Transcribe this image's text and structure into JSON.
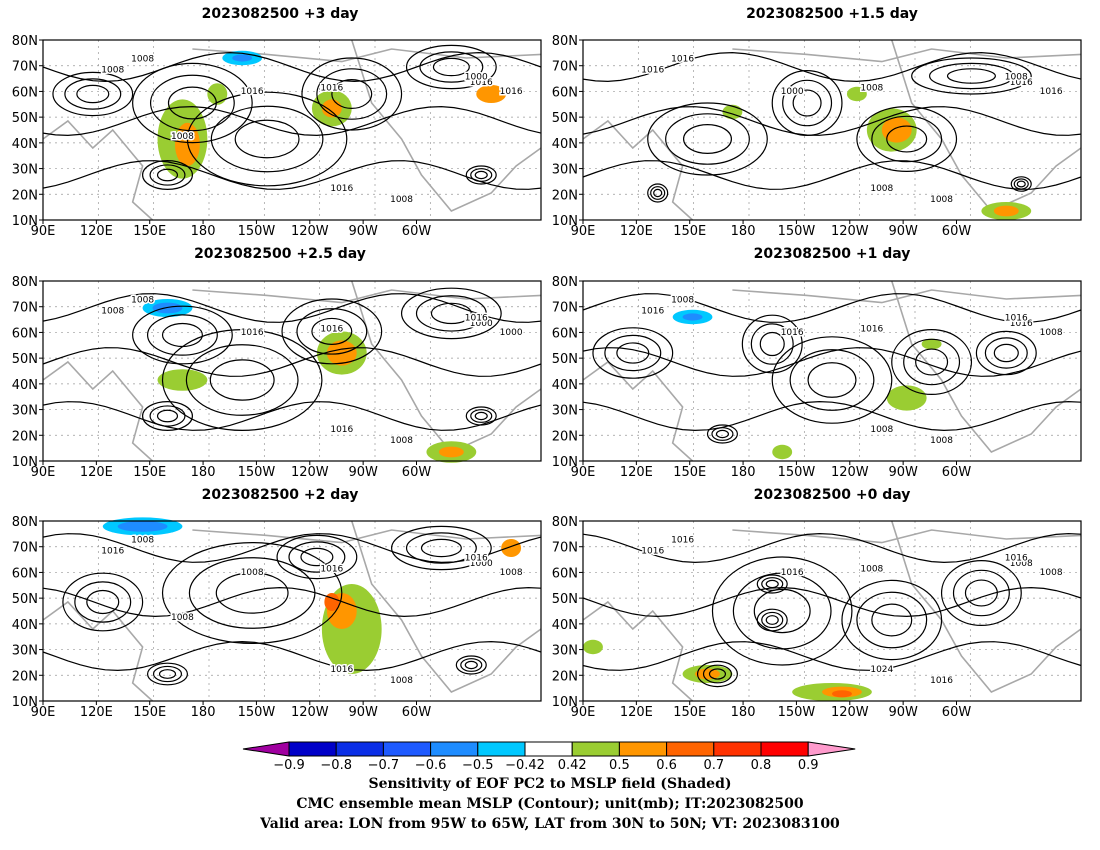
{
  "panels": [
    {
      "title": "2023082500 +3 day",
      "contour_labels": [
        "1008",
        "1008",
        "1016",
        "1016",
        "1016",
        "1008",
        "1016",
        "1000",
        "1016",
        "1008"
      ]
    },
    {
      "title": "2023082500 +1.5 day",
      "contour_labels": [
        "1016",
        "1016",
        "1000",
        "1008",
        "1008",
        "1008",
        "1016",
        "1008",
        "1016"
      ]
    },
    {
      "title": "2023082500 +2.5 day",
      "contour_labels": [
        "1008",
        "1008",
        "1016",
        "1016",
        "1016",
        "1008",
        "1000",
        "1016",
        "1000"
      ]
    },
    {
      "title": "2023082500 +1 day",
      "contour_labels": [
        "1008",
        "1016",
        "1016",
        "1016",
        "1008",
        "1008",
        "1016",
        "1016",
        "1008"
      ]
    },
    {
      "title": "2023082500 +2 day",
      "contour_labels": [
        "1008",
        "1016",
        "1008",
        "1016",
        "1016",
        "1008",
        "1000",
        "1016",
        "1008",
        "1008"
      ]
    },
    {
      "title": "2023082500 +0 day",
      "contour_labels": [
        "1016",
        "1016",
        "1016",
        "1008",
        "1024",
        "1016",
        "1008",
        "1016",
        "1008"
      ]
    }
  ],
  "axes": {
    "lat_labels": [
      "80N",
      "70N",
      "60N",
      "50N",
      "40N",
      "30N",
      "20N",
      "10N"
    ],
    "lon_labels": [
      "90E",
      "120E",
      "150E",
      "180",
      "150W",
      "120W",
      "90W",
      "60W"
    ]
  },
  "colorbar": {
    "tick_labels": [
      "−0.9",
      "−0.8",
      "−0.7",
      "−0.6",
      "−0.5",
      "−0.42",
      "0.42",
      "0.5",
      "0.6",
      "0.7",
      "0.8",
      "0.9"
    ],
    "colors": [
      "#a000a0",
      "#0000c8",
      "#0a2ee6",
      "#1e5aff",
      "#1e8cff",
      "#00c8ff",
      "#ffffff",
      "#9acd32",
      "#ff9600",
      "#ff6400",
      "#ff3200",
      "#ff0000",
      "#ff9bcd"
    ]
  },
  "caption": {
    "line1": "Sensitivity of EOF PC2 to MSLP field (Shaded)",
    "line2": "CMC ensemble mean MSLP (Contour); unit(mb); IT:2023082500",
    "line3": "Valid area: LON from 95W to 65W, LAT from 30N to 50N; VT: 2023083100"
  },
  "shading_colors": {
    "green": "#9acd32",
    "orange": "#ff9600",
    "red_orange": "#ff6400",
    "cyan": "#00c8ff",
    "blue": "#1e8cff"
  },
  "contour_color": "#000000",
  "coast_color": "#a8a8a8",
  "grid_color": "#999999"
}
